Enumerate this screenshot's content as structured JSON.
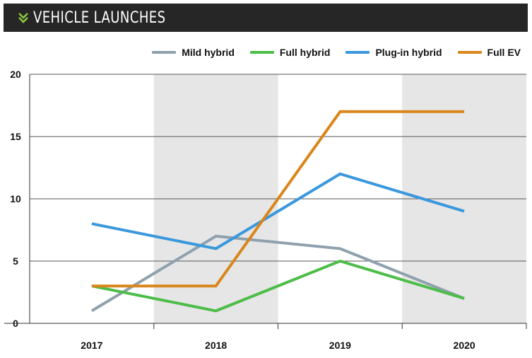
{
  "header": {
    "title": "VEHICLE LAUNCHES",
    "icon": "double-chevron-down-icon",
    "background": "#262626",
    "icon_color": "#8dc63f"
  },
  "chart_data": {
    "type": "line",
    "title": "VEHICLE LAUNCHES",
    "categories": [
      "2017",
      "2018",
      "2019",
      "2020"
    ],
    "ylim": [
      0,
      20
    ],
    "yticks": [
      "0",
      "5",
      "10",
      "15",
      "20"
    ],
    "grid": true,
    "shaded_bands": [
      "2018",
      "2020"
    ],
    "legend_position": "top-right",
    "series": [
      {
        "name": "Mild hybrid",
        "color": "#8fa1ad",
        "values": [
          1,
          7,
          6,
          2
        ]
      },
      {
        "name": "Full hybrid",
        "color": "#4dbd49",
        "values": [
          3,
          1,
          5,
          2
        ]
      },
      {
        "name": "Plug-in hybrid",
        "color": "#3a98dd",
        "values": [
          8,
          6,
          12,
          9
        ]
      },
      {
        "name": "Full EV",
        "color": "#d9861c",
        "values": [
          3,
          3,
          17,
          17
        ]
      }
    ]
  }
}
